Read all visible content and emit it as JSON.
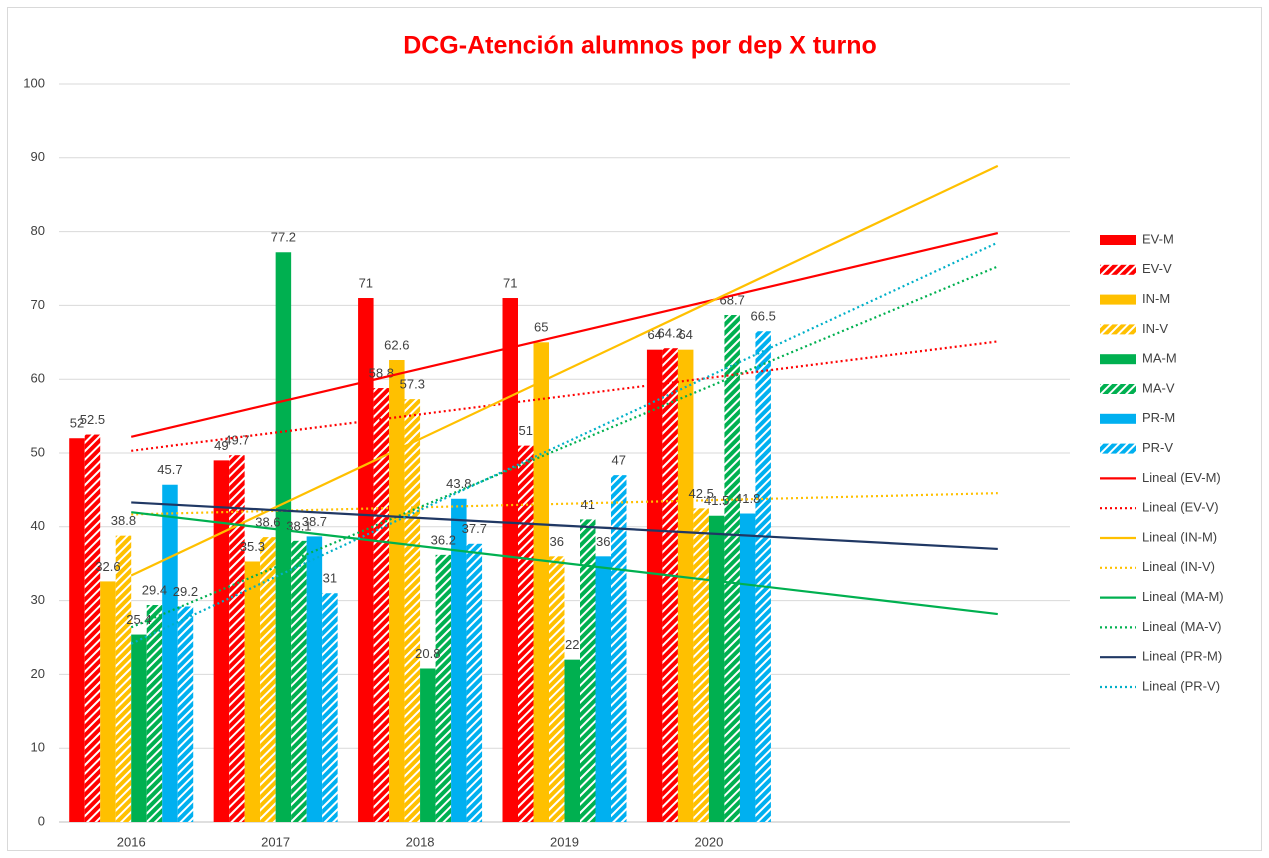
{
  "chart_data": {
    "type": "bar",
    "title": "DCG-Atención alumnos por dep  X turno",
    "categories": [
      "2016",
      "2017",
      "2018",
      "2019",
      "2020"
    ],
    "ylim": [
      0,
      100
    ],
    "yticks": [
      0,
      10,
      20,
      30,
      40,
      50,
      60,
      70,
      80,
      90,
      100
    ],
    "grid": true,
    "legend": "right",
    "trendline_forward": 2,
    "series": [
      {
        "name": "EV-M",
        "color": "#ff0000",
        "pattern": "solid",
        "values": [
          52,
          49,
          71,
          71,
          64
        ]
      },
      {
        "name": "EV-V",
        "color": "#ff0000",
        "pattern": "hatch",
        "values": [
          52.5,
          49.7,
          58.8,
          51,
          64.2
        ]
      },
      {
        "name": "IN-M",
        "color": "#ffc000",
        "pattern": "solid",
        "values": [
          32.6,
          35.3,
          62.6,
          65,
          64
        ]
      },
      {
        "name": "IN-V",
        "color": "#ffc000",
        "pattern": "hatch",
        "values": [
          38.8,
          38.6,
          57.3,
          36,
          42.5
        ]
      },
      {
        "name": "MA-M",
        "color": "#00b050",
        "pattern": "solid",
        "values": [
          25.4,
          77.2,
          20.8,
          22,
          41.5
        ]
      },
      {
        "name": "MA-V",
        "color": "#00b050",
        "pattern": "hatch",
        "values": [
          29.4,
          38.1,
          36.2,
          41,
          68.7
        ]
      },
      {
        "name": "PR-M",
        "color": "#00b0f0",
        "pattern": "solid",
        "values": [
          45.7,
          38.7,
          43.8,
          36,
          41.8
        ]
      },
      {
        "name": "PR-V",
        "color": "#00b0f0",
        "pattern": "hatch",
        "values": [
          29.2,
          31,
          37.7,
          47,
          66.5
        ]
      }
    ],
    "trendlines": [
      {
        "name": "Lineal (EV-M)",
        "series": 0,
        "color": "#ff0000",
        "dash": "solid"
      },
      {
        "name": "Lineal (EV-V)",
        "series": 1,
        "color": "#ff0000",
        "dash": "dotted"
      },
      {
        "name": "Lineal (IN-M)",
        "series": 2,
        "color": "#ffc000",
        "dash": "solid"
      },
      {
        "name": "Lineal (IN-V)",
        "series": 3,
        "color": "#ffc000",
        "dash": "dotted"
      },
      {
        "name": "Lineal (MA-M)",
        "series": 4,
        "color": "#00b050",
        "dash": "solid"
      },
      {
        "name": "Lineal (MA-V)",
        "series": 5,
        "color": "#00b050",
        "dash": "dotted"
      },
      {
        "name": "Lineal (PR-M)",
        "series": 6,
        "color": "#203864",
        "dash": "solid"
      },
      {
        "name": "Lineal (PR-V)",
        "series": 7,
        "color": "#00b0c8",
        "dash": "dotted"
      }
    ]
  }
}
